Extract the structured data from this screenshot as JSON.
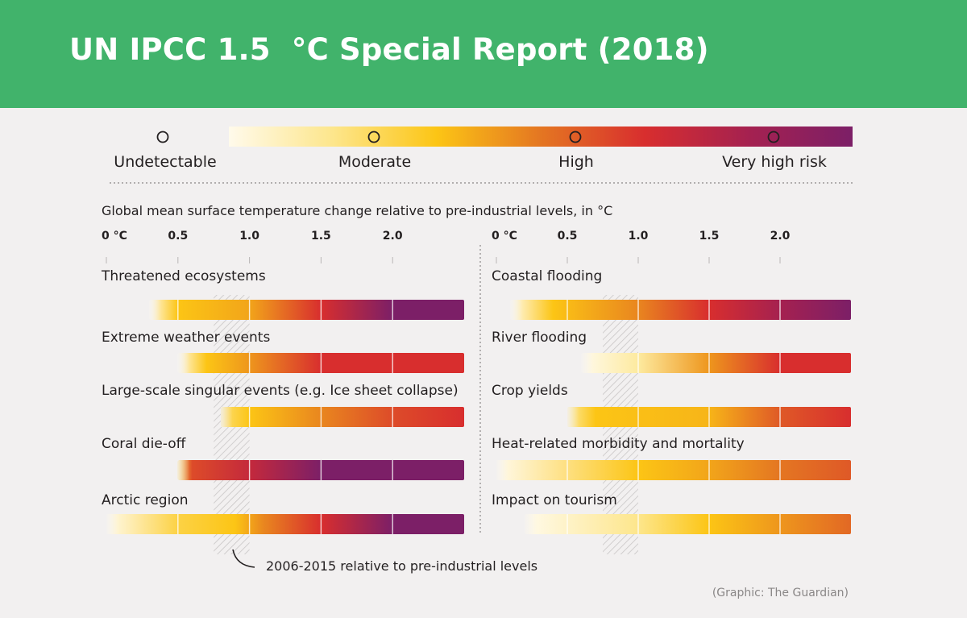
{
  "header": {
    "title": "UN IPCC 1.5  °C Special Report (2018)",
    "color": "#41b36b"
  },
  "chart_data": {
    "type": "heatmap",
    "title": "UN IPCC 1.5  °C Special Report (2018)",
    "xlabel": "Global mean surface temperature change relative to pre-industrial levels, in °C",
    "ylabel": "",
    "x_ticks": [
      "0 °C",
      "0.5",
      "1.0",
      "1.5",
      "2.0"
    ],
    "x_tick_values": [
      0,
      0.5,
      1.0,
      1.5,
      2.0
    ],
    "xlim": [
      0,
      2.5
    ],
    "legend": {
      "labels": [
        "Undetectable",
        "Moderate",
        "High",
        "Very high risk"
      ],
      "positions": [
        0,
        1,
        2,
        3
      ],
      "colors": [
        "#fff6e0",
        "#fcc515",
        "#d82e2e",
        "#7c1f67"
      ]
    },
    "observed_band": {
      "range": [
        0.75,
        1.0
      ],
      "label": "2006-2015 relative to pre-industrial levels"
    },
    "panels": [
      {
        "rows": [
          {
            "name": "Threatened ecosystems",
            "stops": [
              [
                0.3,
                0
              ],
              [
                0.5,
                1
              ],
              [
                1.0,
                1.2
              ],
              [
                1.5,
                2
              ],
              [
                2.0,
                3
              ],
              [
                2.5,
                3
              ]
            ]
          },
          {
            "name": "Extreme weather events",
            "stops": [
              [
                0.5,
                0
              ],
              [
                0.7,
                1
              ],
              [
                1.0,
                1.3
              ],
              [
                1.5,
                2
              ],
              [
                2.5,
                2
              ]
            ]
          },
          {
            "name": "Large-scale singular events (e.g. Ice sheet collapse)",
            "stops": [
              [
                0.8,
                0.6
              ],
              [
                1.0,
                1.0
              ],
              [
                1.5,
                1.4
              ],
              [
                2.0,
                1.8
              ],
              [
                2.5,
                2
              ]
            ]
          },
          {
            "name": "Coral die-off",
            "stops": [
              [
                0.5,
                0.8
              ],
              [
                0.6,
                1.8
              ],
              [
                1.0,
                2.2
              ],
              [
                1.5,
                3
              ],
              [
                2.5,
                3
              ]
            ]
          },
          {
            "name": "Arctic region",
            "stops": [
              [
                0,
                0
              ],
              [
                0.5,
                0.8
              ],
              [
                0.9,
                1.0
              ],
              [
                1.1,
                1.4
              ],
              [
                1.5,
                2
              ],
              [
                2.0,
                3
              ],
              [
                2.5,
                3
              ]
            ]
          }
        ]
      },
      {
        "rows": [
          {
            "name": "Coastal flooding",
            "stops": [
              [
                0.1,
                0
              ],
              [
                0.4,
                1
              ],
              [
                1.0,
                1.4
              ],
              [
                1.5,
                2
              ],
              [
                2.0,
                2.5
              ],
              [
                2.5,
                3
              ]
            ]
          },
          {
            "name": "River flooding",
            "stops": [
              [
                0.6,
                0
              ],
              [
                1.0,
                0.4
              ],
              [
                1.5,
                1.3
              ],
              [
                2.0,
                2
              ],
              [
                2.5,
                2
              ]
            ]
          },
          {
            "name": "Crop yields",
            "stops": [
              [
                0.5,
                0.4
              ],
              [
                0.7,
                1
              ],
              [
                1.5,
                1.1
              ],
              [
                2.0,
                1.7
              ],
              [
                2.5,
                2
              ]
            ]
          },
          {
            "name": "Heat-related morbidity and mortality",
            "stops": [
              [
                0,
                0
              ],
              [
                1.0,
                1
              ],
              [
                1.5,
                1.2
              ],
              [
                2.0,
                1.5
              ],
              [
                2.5,
                1.7
              ]
            ]
          },
          {
            "name": "Impact on tourism",
            "stops": [
              [
                0.2,
                0
              ],
              [
                1.0,
                0.5
              ],
              [
                1.5,
                1
              ],
              [
                2.0,
                1.3
              ],
              [
                2.5,
                1.6
              ]
            ]
          }
        ]
      }
    ],
    "source": "(Graphic: The Guardian)"
  }
}
